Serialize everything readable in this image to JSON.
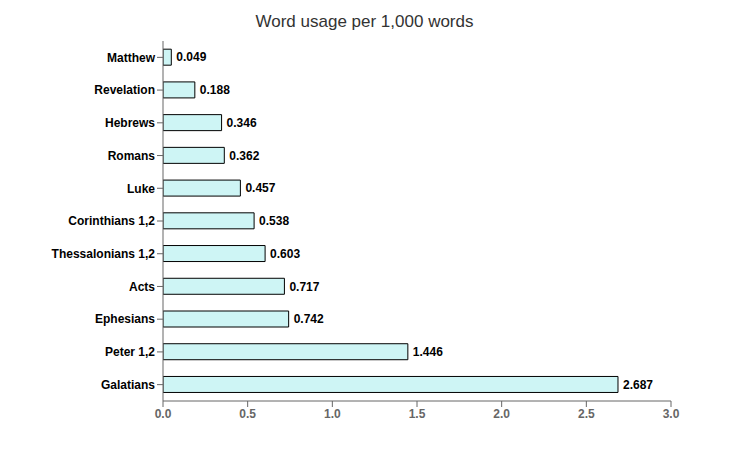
{
  "chart_data": {
    "type": "bar",
    "title": "Word usage per 1,000 words",
    "orientation": "horizontal",
    "categories": [
      "Matthew",
      "Revelation",
      "Hebrews",
      "Romans",
      "Luke",
      "Corinthians 1,2",
      "Thessalonians 1,2",
      "Acts",
      "Ephesians",
      "Peter 1,2",
      "Galatians"
    ],
    "values": [
      0.049,
      0.188,
      0.346,
      0.362,
      0.457,
      0.538,
      0.603,
      0.717,
      0.742,
      1.446,
      2.687
    ],
    "color": "#cef5f5",
    "xlim": [
      0.0,
      3.0
    ],
    "xticks": [
      {
        "value": 0,
        "label": "0.0"
      },
      0.5,
      {
        "value": 1,
        "label": "1.0"
      },
      1.5,
      {
        "value": 2,
        "label": "2.0"
      },
      2.5,
      {
        "value": 3,
        "label": "3.0"
      }
    ],
    "data_labels": true,
    "grid": false
  }
}
